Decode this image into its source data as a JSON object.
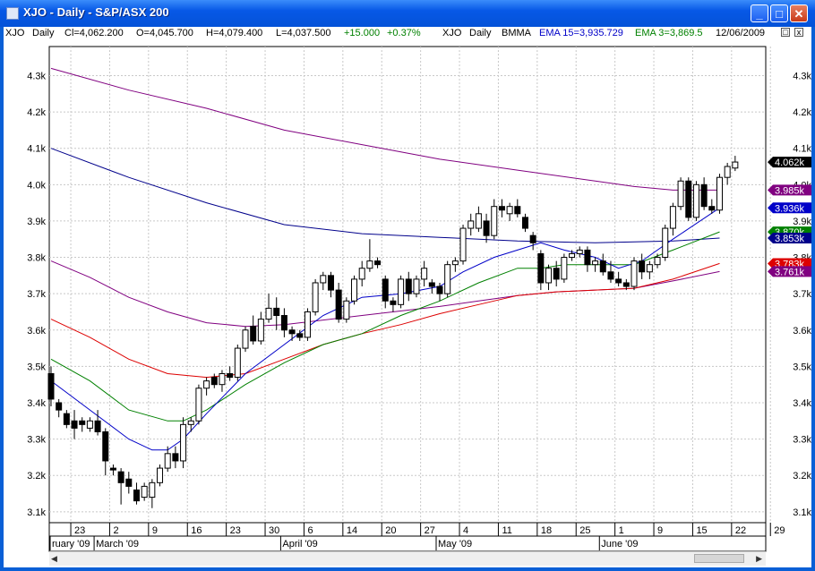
{
  "window": {
    "title": "XJO - Daily - S&P/ASX 200",
    "min_glyph": "_",
    "max_glyph": "□",
    "close_glyph": "✕"
  },
  "infobar": {
    "ticker": "XJO",
    "period": "Daily",
    "close": "Cl=4,062.200",
    "open": "O=4,045.700",
    "high": "H=4,079.400",
    "low": "L=4,037.500",
    "change": "+15.000",
    "change_pct": "+0.37%",
    "ind_ticker": "XJO",
    "ind_period": "Daily",
    "ind_name": "BMMA",
    "ema15": "EMA 15=3,935.729",
    "ema3": "EMA 3=3,869.5",
    "date": "12/06/2009",
    "max_glyph": "□",
    "close_glyph": "x"
  },
  "colors": {
    "ema15": "#0000c8",
    "ema3": "#008000",
    "change": "#008000"
  },
  "chart_data": {
    "type": "candlestick",
    "ylim": [
      3070,
      4380
    ],
    "y_ticks": [
      {
        "v": 3100,
        "label": "3.1k"
      },
      {
        "v": 3200,
        "label": "3.2k"
      },
      {
        "v": 3300,
        "label": "3.3k"
      },
      {
        "v": 3400,
        "label": "3.4k"
      },
      {
        "v": 3500,
        "label": "3.5k"
      },
      {
        "v": 3600,
        "label": "3.6k"
      },
      {
        "v": 3700,
        "label": "3.7k"
      },
      {
        "v": 3800,
        "label": "3.8k"
      },
      {
        "v": 3900,
        "label": "3.9k"
      },
      {
        "v": 4000,
        "label": "4.0k"
      },
      {
        "v": 4100,
        "label": "4.1k"
      },
      {
        "v": 4200,
        "label": "4.2k"
      },
      {
        "v": 4300,
        "label": "4.3k"
      }
    ],
    "x_labels": [
      {
        "i": 3,
        "label": "23"
      },
      {
        "i": 8,
        "label": "2"
      },
      {
        "i": 13,
        "label": "9"
      },
      {
        "i": 18,
        "label": "16"
      },
      {
        "i": 23,
        "label": "23"
      },
      {
        "i": 28,
        "label": "30"
      },
      {
        "i": 33,
        "label": "6"
      },
      {
        "i": 38,
        "label": "14"
      },
      {
        "i": 43,
        "label": "20"
      },
      {
        "i": 48,
        "label": "27"
      },
      {
        "i": 53,
        "label": "4"
      },
      {
        "i": 58,
        "label": "11"
      },
      {
        "i": 63,
        "label": "18"
      },
      {
        "i": 68,
        "label": "25"
      },
      {
        "i": 73,
        "label": "1"
      },
      {
        "i": 78,
        "label": "9"
      },
      {
        "i": 83,
        "label": "15"
      },
      {
        "i": 88,
        "label": "22"
      },
      {
        "i": 93,
        "label": "29"
      }
    ],
    "month_labels": [
      {
        "i": -0.5,
        "label": "ruary '09"
      },
      {
        "i": 6,
        "label": "March '09"
      },
      {
        "i": 30,
        "label": "April '09"
      },
      {
        "i": 50,
        "label": "May '09"
      },
      {
        "i": 71,
        "label": "June '09"
      }
    ],
    "candles": [
      [
        3480,
        3500,
        3390,
        3410
      ],
      [
        3400,
        3410,
        3360,
        3380
      ],
      [
        3370,
        3380,
        3330,
        3340
      ],
      [
        3350,
        3380,
        3300,
        3330
      ],
      [
        3350,
        3360,
        3320,
        3340
      ],
      [
        3330,
        3360,
        3320,
        3350
      ],
      [
        3350,
        3380,
        3310,
        3320
      ],
      [
        3320,
        3330,
        3200,
        3240
      ],
      [
        3220,
        3230,
        3200,
        3215
      ],
      [
        3210,
        3220,
        3120,
        3180
      ],
      [
        3190,
        3210,
        3150,
        3170
      ],
      [
        3160,
        3180,
        3120,
        3130
      ],
      [
        3140,
        3180,
        3130,
        3170
      ],
      [
        3140,
        3190,
        3110,
        3180
      ],
      [
        3180,
        3230,
        3170,
        3220
      ],
      [
        3220,
        3280,
        3210,
        3260
      ],
      [
        3260,
        3280,
        3220,
        3240
      ],
      [
        3240,
        3360,
        3220,
        3340
      ],
      [
        3340,
        3360,
        3320,
        3350
      ],
      [
        3350,
        3450,
        3340,
        3440
      ],
      [
        3440,
        3470,
        3420,
        3460
      ],
      [
        3470,
        3480,
        3440,
        3450
      ],
      [
        3450,
        3490,
        3430,
        3480
      ],
      [
        3480,
        3500,
        3460,
        3470
      ],
      [
        3470,
        3560,
        3460,
        3550
      ],
      [
        3550,
        3610,
        3540,
        3600
      ],
      [
        3610,
        3640,
        3560,
        3570
      ],
      [
        3570,
        3650,
        3560,
        3630
      ],
      [
        3630,
        3700,
        3620,
        3660
      ],
      [
        3660,
        3690,
        3600,
        3640
      ],
      [
        3640,
        3660,
        3580,
        3600
      ],
      [
        3600,
        3610,
        3570,
        3590
      ],
      [
        3590,
        3600,
        3570,
        3580
      ],
      [
        3580,
        3660,
        3570,
        3650
      ],
      [
        3650,
        3740,
        3640,
        3730
      ],
      [
        3730,
        3760,
        3710,
        3750
      ],
      [
        3750,
        3760,
        3690,
        3710
      ],
      [
        3710,
        3730,
        3620,
        3630
      ],
      [
        3630,
        3690,
        3620,
        3680
      ],
      [
        3680,
        3750,
        3670,
        3740
      ],
      [
        3740,
        3790,
        3720,
        3770
      ],
      [
        3770,
        3850,
        3760,
        3790
      ],
      [
        3790,
        3800,
        3770,
        3780
      ],
      [
        3740,
        3750,
        3660,
        3680
      ],
      [
        3680,
        3690,
        3650,
        3670
      ],
      [
        3670,
        3750,
        3660,
        3740
      ],
      [
        3740,
        3760,
        3680,
        3700
      ],
      [
        3700,
        3750,
        3690,
        3740
      ],
      [
        3740,
        3790,
        3720,
        3770
      ],
      [
        3730,
        3740,
        3700,
        3720
      ],
      [
        3720,
        3730,
        3680,
        3700
      ],
      [
        3700,
        3790,
        3690,
        3780
      ],
      [
        3780,
        3800,
        3760,
        3790
      ],
      [
        3790,
        3890,
        3780,
        3880
      ],
      [
        3880,
        3920,
        3860,
        3900
      ],
      [
        3880,
        3940,
        3870,
        3920
      ],
      [
        3900,
        3920,
        3840,
        3860
      ],
      [
        3860,
        3960,
        3850,
        3940
      ],
      [
        3940,
        3960,
        3910,
        3930
      ],
      [
        3920,
        3950,
        3900,
        3940
      ],
      [
        3940,
        3960,
        3910,
        3920
      ],
      [
        3910,
        3920,
        3870,
        3880
      ],
      [
        3860,
        3870,
        3820,
        3840
      ],
      [
        3810,
        3820,
        3710,
        3730
      ],
      [
        3730,
        3780,
        3710,
        3770
      ],
      [
        3770,
        3790,
        3720,
        3740
      ],
      [
        3740,
        3810,
        3730,
        3800
      ],
      [
        3800,
        3820,
        3790,
        3810
      ],
      [
        3810,
        3830,
        3800,
        3820
      ],
      [
        3820,
        3830,
        3760,
        3780
      ],
      [
        3780,
        3800,
        3760,
        3790
      ],
      [
        3790,
        3810,
        3750,
        3760
      ],
      [
        3760,
        3790,
        3730,
        3740
      ],
      [
        3740,
        3760,
        3720,
        3730
      ],
      [
        3730,
        3740,
        3710,
        3720
      ],
      [
        3720,
        3800,
        3710,
        3790
      ],
      [
        3790,
        3810,
        3740,
        3760
      ],
      [
        3760,
        3790,
        3740,
        3780
      ],
      [
        3780,
        3810,
        3770,
        3800
      ],
      [
        3800,
        3890,
        3790,
        3880
      ],
      [
        3880,
        3950,
        3860,
        3940
      ],
      [
        3940,
        4020,
        3930,
        4010
      ],
      [
        4010,
        4020,
        3900,
        3910
      ],
      [
        3910,
        4010,
        3900,
        4000
      ],
      [
        4000,
        4020,
        3930,
        3940
      ],
      [
        3940,
        3960,
        3920,
        3930
      ],
      [
        3930,
        4030,
        3920,
        4020
      ],
      [
        4020,
        4060,
        4000,
        4050
      ],
      [
        4045.7,
        4079.4,
        4037.5,
        4062.2
      ]
    ],
    "series": [
      {
        "color": "#800080",
        "values": [
          [
            0,
            4320
          ],
          [
            10,
            4260
          ],
          [
            20,
            4210
          ],
          [
            30,
            4150
          ],
          [
            40,
            4110
          ],
          [
            50,
            4070
          ],
          [
            60,
            4040
          ],
          [
            70,
            4010
          ],
          [
            75,
            3995
          ],
          [
            80,
            3985
          ],
          [
            86,
            3985
          ]
        ]
      },
      {
        "color": "#00008b",
        "values": [
          [
            0,
            4100
          ],
          [
            10,
            4020
          ],
          [
            20,
            3950
          ],
          [
            30,
            3890
          ],
          [
            40,
            3865
          ],
          [
            50,
            3855
          ],
          [
            60,
            3845
          ],
          [
            70,
            3840
          ],
          [
            80,
            3845
          ],
          [
            86,
            3853
          ]
        ]
      },
      {
        "color": "#800080",
        "values": [
          [
            0,
            3790
          ],
          [
            5,
            3745
          ],
          [
            10,
            3690
          ],
          [
            15,
            3650
          ],
          [
            20,
            3620
          ],
          [
            25,
            3610
          ],
          [
            30,
            3615
          ],
          [
            40,
            3640
          ],
          [
            50,
            3665
          ],
          [
            55,
            3680
          ],
          [
            60,
            3695
          ],
          [
            65,
            3705
          ],
          [
            70,
            3710
          ],
          [
            75,
            3715
          ],
          [
            80,
            3735
          ],
          [
            86,
            3761
          ]
        ]
      },
      {
        "color": "#dd0000",
        "values": [
          [
            0,
            3630
          ],
          [
            5,
            3580
          ],
          [
            10,
            3520
          ],
          [
            15,
            3480
          ],
          [
            20,
            3470
          ],
          [
            25,
            3480
          ],
          [
            30,
            3520
          ],
          [
            35,
            3560
          ],
          [
            40,
            3590
          ],
          [
            45,
            3615
          ],
          [
            50,
            3645
          ],
          [
            55,
            3670
          ],
          [
            60,
            3695
          ],
          [
            65,
            3705
          ],
          [
            70,
            3710
          ],
          [
            75,
            3715
          ],
          [
            80,
            3740
          ],
          [
            86,
            3783
          ]
        ]
      },
      {
        "color": "#008000",
        "values": [
          [
            0,
            3520
          ],
          [
            5,
            3460
          ],
          [
            10,
            3380
          ],
          [
            15,
            3350
          ],
          [
            17,
            3350
          ],
          [
            20,
            3380
          ],
          [
            25,
            3450
          ],
          [
            30,
            3510
          ],
          [
            35,
            3560
          ],
          [
            40,
            3590
          ],
          [
            45,
            3640
          ],
          [
            50,
            3680
          ],
          [
            55,
            3730
          ],
          [
            60,
            3770
          ],
          [
            63,
            3770
          ],
          [
            66,
            3780
          ],
          [
            70,
            3780
          ],
          [
            75,
            3780
          ],
          [
            80,
            3820
          ],
          [
            86,
            3870
          ]
        ]
      },
      {
        "color": "#0000c8",
        "values": [
          [
            0,
            3460
          ],
          [
            5,
            3380
          ],
          [
            10,
            3300
          ],
          [
            13,
            3270
          ],
          [
            15,
            3270
          ],
          [
            17,
            3300
          ],
          [
            20,
            3370
          ],
          [
            25,
            3480
          ],
          [
            30,
            3560
          ],
          [
            35,
            3640
          ],
          [
            40,
            3690
          ],
          [
            45,
            3700
          ],
          [
            50,
            3720
          ],
          [
            53,
            3760
          ],
          [
            57,
            3800
          ],
          [
            60,
            3820
          ],
          [
            63,
            3840
          ],
          [
            66,
            3820
          ],
          [
            70,
            3800
          ],
          [
            73,
            3770
          ],
          [
            76,
            3790
          ],
          [
            80,
            3850
          ],
          [
            86,
            3936
          ]
        ]
      }
    ],
    "right_labels": [
      {
        "v": 4062,
        "label": "4.062k",
        "color": "#000000"
      },
      {
        "v": 3985,
        "label": "3.985k",
        "color": "#800080"
      },
      {
        "v": 3936,
        "label": "3.936k",
        "color": "#0000c8"
      },
      {
        "v": 3870,
        "label": "3.870k",
        "color": "#008000"
      },
      {
        "v": 3853,
        "label": "3.853k",
        "color": "#00008b"
      },
      {
        "v": 3783,
        "label": "3.783k",
        "color": "#dd0000"
      },
      {
        "v": 3761,
        "label": "3.761k",
        "color": "#800080"
      }
    ]
  }
}
